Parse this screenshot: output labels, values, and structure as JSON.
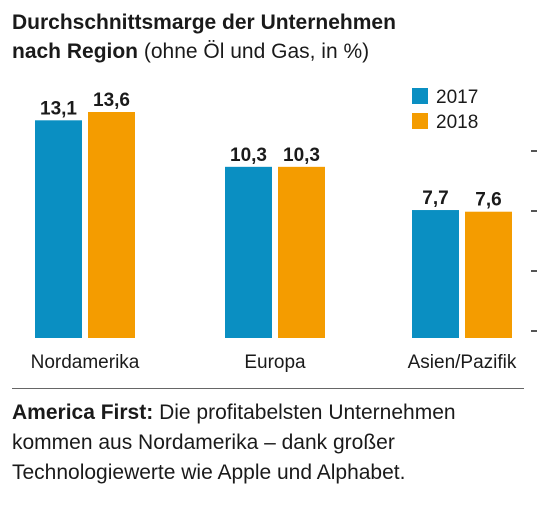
{
  "header": {
    "title_bold_line1": "Durchschnittsmarge der Unternehmen",
    "title_bold_line2": "nach Region",
    "title_sub": "(ohne Öl und Gas, in %)"
  },
  "caption": {
    "lead": "America First:",
    "text": "Die profitabelsten Unternehmen kommen aus Nordamerika – dank großer Technologiewerte wie Apple und Alphabet."
  },
  "colors": {
    "s2017": "#0a8fc2",
    "s2018": "#f49c00"
  },
  "chart_data": {
    "type": "bar",
    "title": "Durchschnittsmarge der Unternehmen nach Region (ohne Öl und Gas, in %)",
    "categories": [
      "Nordamerika",
      "Europa",
      "Asien/Pazifik"
    ],
    "series": [
      {
        "name": "2017",
        "values": [
          13.1,
          10.3,
          7.7
        ],
        "labels": [
          "13,1",
          "10,3",
          "7,7"
        ]
      },
      {
        "name": "2018",
        "values": [
          13.6,
          10.3,
          7.6
        ],
        "labels": [
          "13,6",
          "10,3",
          "7,6"
        ]
      }
    ],
    "ylim": [
      0,
      13.6
    ],
    "legend": "top-right",
    "grid": false
  }
}
